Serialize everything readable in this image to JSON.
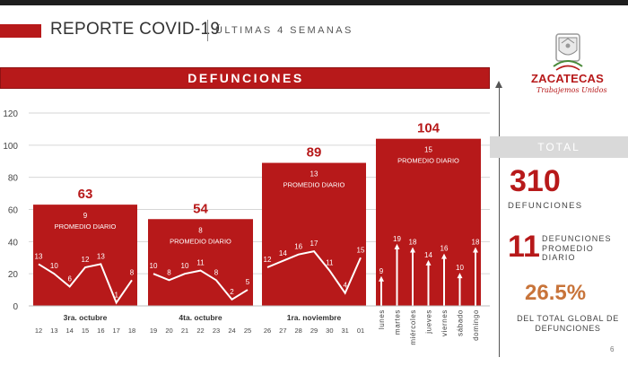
{
  "header": {
    "title": "REPORTE COVID-19",
    "subtitle": "ÚLTIMAS 4 SEMANAS"
  },
  "logo": {
    "name": "ZACATECAS",
    "tagline": "Trabajemos Unidos"
  },
  "section_title": "DEFUNCIONES",
  "sidebar": {
    "total_label": "TOTAL",
    "total_value": "310",
    "total_caption": "DEFUNCIONES",
    "avg_value": "11",
    "avg_caption": "DEFUNCIONES PROMEDIO DIARIO",
    "pct_value": "26.5%",
    "pct_caption": "DEL TOTAL GLOBAL DE DEFUNCIONES",
    "page_number": "6"
  },
  "colors": {
    "accent_red": "#b7191a",
    "accent_orange": "#c8743a"
  },
  "chart_data": {
    "type": "bar",
    "ylim": [
      0,
      120
    ],
    "yticks": [
      0,
      20,
      40,
      60,
      80,
      100,
      120
    ],
    "grid": true,
    "average_label": "PROMEDIO DIARIO",
    "weeks": [
      {
        "label": "3ra. octubre",
        "total": 63,
        "daily_average": 9,
        "days": [
          "12",
          "13",
          "14",
          "15",
          "16",
          "17",
          "18"
        ],
        "daily_values": [
          13,
          10,
          6,
          12,
          13,
          1,
          8
        ]
      },
      {
        "label": "4ta. octubre",
        "total": 54,
        "daily_average": 8,
        "days": [
          "19",
          "20",
          "21",
          "22",
          "23",
          "24",
          "25"
        ],
        "daily_values": [
          10,
          8,
          10,
          11,
          8,
          2,
          5
        ]
      },
      {
        "label": "1ra. noviembre",
        "total": 89,
        "daily_average": 13,
        "days": [
          "26",
          "27",
          "28",
          "29",
          "30",
          "31",
          "01"
        ],
        "daily_values": [
          12,
          14,
          16,
          17,
          11,
          4,
          15
        ]
      },
      {
        "label": "",
        "total": 104,
        "daily_average": 15,
        "days": [
          "lunes",
          "martes",
          "miércoles",
          "jueves",
          "viernes",
          "sábado",
          "domingo"
        ],
        "daily_values": [
          9,
          19,
          18,
          14,
          16,
          10,
          18
        ]
      }
    ]
  }
}
